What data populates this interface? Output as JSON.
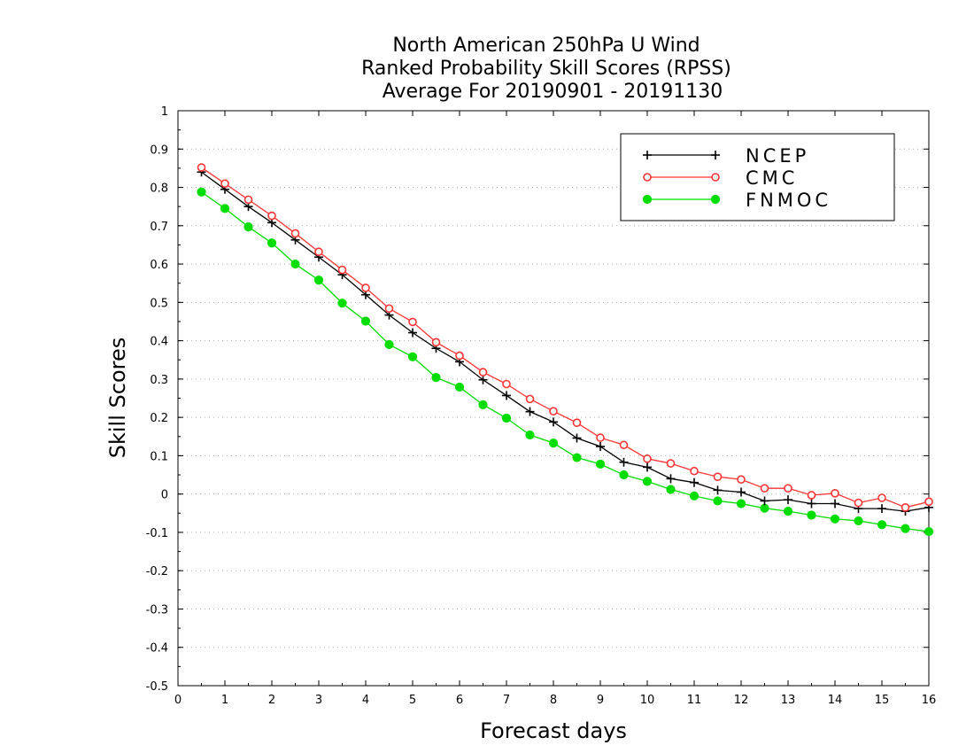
{
  "chart_data": {
    "type": "line",
    "title": [
      "North American 250hPa U Wind",
      "Ranked Probability Skill Scores (RPSS)",
      "Average For 20190901 - 20191130"
    ],
    "xlabel": "Forecast days",
    "ylabel": "Skill Scores",
    "xlim": [
      0,
      16
    ],
    "ylim": [
      -0.5,
      1
    ],
    "xticks": [
      "0",
      "1",
      "2",
      "3",
      "4",
      "5",
      "6",
      "7",
      "8",
      "9",
      "10",
      "11",
      "12",
      "13",
      "14",
      "15",
      "16"
    ],
    "yticks": [
      "1",
      "0.9",
      "0.8",
      "0.7",
      "0.6",
      "0.5",
      "0.4",
      "0.3",
      "0.2",
      "0.1",
      "0",
      "-0.1",
      "-0.2",
      "-0.3",
      "-0.4",
      "-0.5"
    ],
    "grid": "horizontal dotted",
    "legend_position": "top-right",
    "x": [
      0.5,
      1,
      1.5,
      2,
      2.5,
      3,
      3.5,
      4,
      4.5,
      5,
      5.5,
      6,
      6.5,
      7,
      7.5,
      8,
      8.5,
      9,
      9.5,
      10,
      10.5,
      11,
      11.5,
      12,
      12.5,
      13,
      13.5,
      14,
      14.5,
      15,
      15.5,
      16
    ],
    "series": [
      {
        "name": "NCEP",
        "color": "#000000",
        "marker": "plus",
        "values": [
          0.84,
          0.795,
          0.75,
          0.708,
          0.663,
          0.618,
          0.572,
          0.52,
          0.467,
          0.421,
          0.38,
          0.345,
          0.298,
          0.257,
          0.215,
          0.188,
          0.146,
          0.124,
          0.083,
          0.07,
          0.04,
          0.03,
          0.01,
          0.005,
          -0.018,
          -0.015,
          -0.025,
          -0.025,
          -0.038,
          -0.038,
          -0.045,
          -0.035
        ]
      },
      {
        "name": "CMC",
        "color": "#ff3333",
        "marker": "open-circle",
        "values": [
          0.852,
          0.81,
          0.768,
          0.726,
          0.68,
          0.632,
          0.585,
          0.538,
          0.484,
          0.449,
          0.396,
          0.361,
          0.318,
          0.287,
          0.248,
          0.216,
          0.186,
          0.147,
          0.128,
          0.092,
          0.08,
          0.06,
          0.045,
          0.038,
          0.015,
          0.015,
          -0.003,
          0.002,
          -0.023,
          -0.01,
          -0.035,
          -0.02
        ]
      },
      {
        "name": "FNMOC",
        "color": "#00dd00",
        "marker": "filled-circle",
        "values": [
          0.788,
          0.745,
          0.697,
          0.655,
          0.6,
          0.558,
          0.498,
          0.451,
          0.39,
          0.358,
          0.304,
          0.279,
          0.233,
          0.198,
          0.154,
          0.133,
          0.095,
          0.078,
          0.05,
          0.033,
          0.012,
          -0.005,
          -0.018,
          -0.025,
          -0.037,
          -0.045,
          -0.055,
          -0.065,
          -0.07,
          -0.08,
          -0.09,
          -0.098
        ]
      }
    ]
  }
}
